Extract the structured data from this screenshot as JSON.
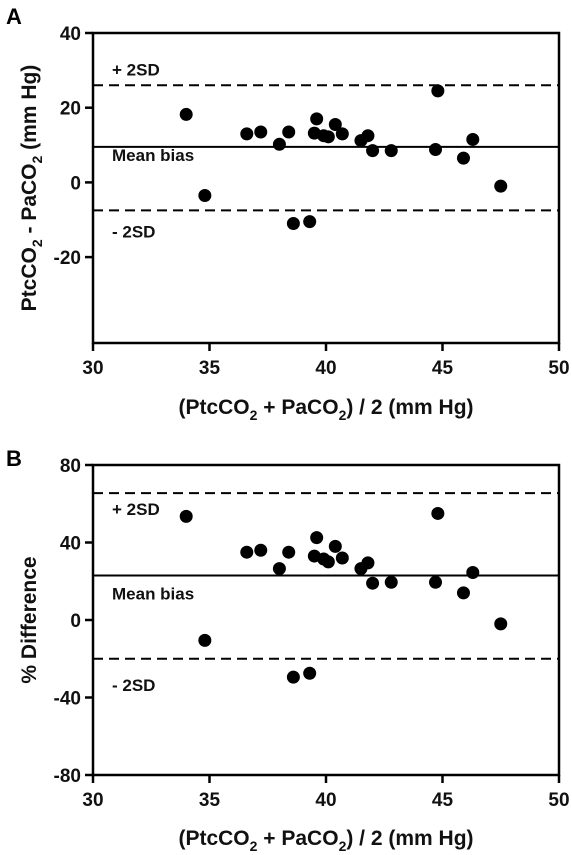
{
  "chart_data": [
    {
      "type": "scatter",
      "panel_label": "A",
      "xlabel": {
        "pre": "(PtcCO",
        "sub1": "2",
        "mid": " + PaCO",
        "sub2": "2",
        "post": ") / 2 (mm Hg)"
      },
      "ylabel": {
        "pre": "PtcCO",
        "sub1": "2",
        "mid": " - PaCO",
        "sub2": "2",
        "post": " (mm Hg)"
      },
      "xlim": [
        30,
        50
      ],
      "ylim": [
        -43,
        40
      ],
      "xticks": [
        "30",
        "35",
        "40",
        "45",
        "50"
      ],
      "yticks": [
        "40",
        "20",
        "0",
        "-20"
      ],
      "grid": false,
      "reference_lines": [
        {
          "label": "+ 2SD",
          "y": 26,
          "style": "dashed"
        },
        {
          "label": "Mean bias",
          "y": 9.5,
          "style": "solid"
        },
        {
          "label": "- 2SD",
          "y": -7.5,
          "style": "dashed"
        }
      ],
      "points": [
        {
          "x": 34.0,
          "y": 18.2
        },
        {
          "x": 34.8,
          "y": -3.5
        },
        {
          "x": 36.6,
          "y": 13.0
        },
        {
          "x": 37.2,
          "y": 13.5
        },
        {
          "x": 38.0,
          "y": 10.2
        },
        {
          "x": 38.4,
          "y": 13.5
        },
        {
          "x": 38.6,
          "y": -11.0
        },
        {
          "x": 39.3,
          "y": -10.5
        },
        {
          "x": 39.5,
          "y": 13.2
        },
        {
          "x": 39.6,
          "y": 17.0
        },
        {
          "x": 39.9,
          "y": 12.5
        },
        {
          "x": 40.1,
          "y": 12.2
        },
        {
          "x": 40.4,
          "y": 15.5
        },
        {
          "x": 40.7,
          "y": 13.0
        },
        {
          "x": 41.5,
          "y": 11.2
        },
        {
          "x": 41.8,
          "y": 12.5
        },
        {
          "x": 42.0,
          "y": 8.5
        },
        {
          "x": 42.8,
          "y": 8.5
        },
        {
          "x": 44.7,
          "y": 8.8
        },
        {
          "x": 44.8,
          "y": 24.5
        },
        {
          "x": 45.9,
          "y": 6.5
        },
        {
          "x": 46.3,
          "y": 11.5
        },
        {
          "x": 47.5,
          "y": -1.0
        }
      ]
    },
    {
      "type": "scatter",
      "panel_label": "B",
      "xlabel": {
        "pre": "(PtcCO",
        "sub1": "2",
        "mid": " + PaCO",
        "sub2": "2",
        "post": ") / 2 (mm Hg)"
      },
      "ylabel": {
        "pre": "% Difference",
        "sub1": "",
        "mid": "",
        "sub2": "",
        "post": ""
      },
      "xlim": [
        30,
        50
      ],
      "ylim": [
        -80,
        80
      ],
      "xticks": [
        "30",
        "35",
        "40",
        "45",
        "50"
      ],
      "yticks": [
        "80",
        "40",
        "0",
        "-40",
        "-80"
      ],
      "grid": false,
      "reference_lines": [
        {
          "label": "+ 2SD",
          "y": 65.5,
          "style": "dashed"
        },
        {
          "label": "Mean bias",
          "y": 23,
          "style": "solid"
        },
        {
          "label": "- 2SD",
          "y": -20,
          "style": "dashed"
        }
      ],
      "points": [
        {
          "x": 34.0,
          "y": 53.5
        },
        {
          "x": 34.8,
          "y": -10.5
        },
        {
          "x": 36.6,
          "y": 35.0
        },
        {
          "x": 37.2,
          "y": 36.0
        },
        {
          "x": 38.0,
          "y": 26.5
        },
        {
          "x": 38.4,
          "y": 35.0
        },
        {
          "x": 38.6,
          "y": -29.5
        },
        {
          "x": 39.3,
          "y": -27.5
        },
        {
          "x": 39.5,
          "y": 33.0
        },
        {
          "x": 39.6,
          "y": 42.5
        },
        {
          "x": 39.9,
          "y": 31.5
        },
        {
          "x": 40.1,
          "y": 30.0
        },
        {
          "x": 40.4,
          "y": 38.0
        },
        {
          "x": 40.7,
          "y": 32.0
        },
        {
          "x": 41.5,
          "y": 26.5
        },
        {
          "x": 41.8,
          "y": 29.5
        },
        {
          "x": 42.0,
          "y": 19.0
        },
        {
          "x": 42.8,
          "y": 19.5
        },
        {
          "x": 44.7,
          "y": 19.5
        },
        {
          "x": 44.8,
          "y": 55.0
        },
        {
          "x": 45.9,
          "y": 14.0
        },
        {
          "x": 46.3,
          "y": 24.5
        },
        {
          "x": 47.5,
          "y": -2.0
        }
      ]
    }
  ]
}
